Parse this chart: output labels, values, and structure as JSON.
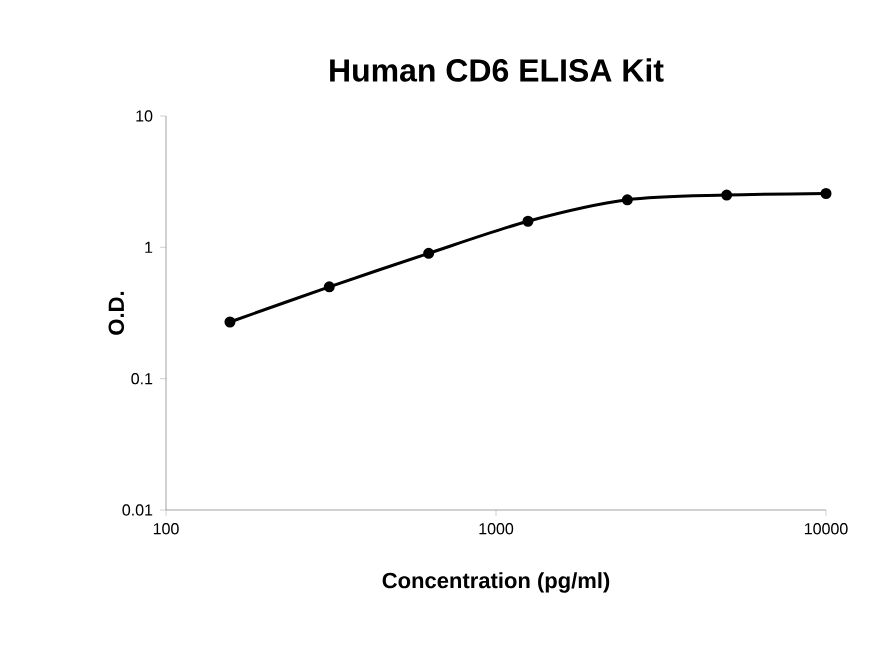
{
  "chart_data": {
    "type": "line",
    "title": "Human CD6 ELISA Kit",
    "xlabel": "Concentration (pg/ml)",
    "ylabel": "O.D.",
    "log": "xy",
    "x": [
      156.25,
      312.5,
      625,
      1250,
      2500,
      5000,
      10000
    ],
    "series": [
      {
        "color": "#000000",
        "values": [
          0.27,
          0.5,
          0.9,
          1.58,
          2.3,
          2.5,
          2.57
        ]
      }
    ],
    "xlim": [
      100,
      10000
    ],
    "xticks": [
      100,
      1000,
      10000
    ],
    "ylim": [
      0.01,
      10
    ],
    "yticks": [
      0.01,
      0.1,
      1,
      10
    ],
    "marker": "circle",
    "line_style": "solid"
  }
}
